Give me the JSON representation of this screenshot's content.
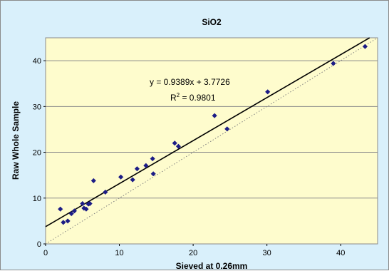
{
  "chart_data": {
    "type": "scatter",
    "title": "SiO2",
    "xlabel": "Sieved at 0.26mm",
    "ylabel": "Raw Whole Sample",
    "xlim": [
      0,
      45
    ],
    "ylim": [
      0,
      45
    ],
    "x_ticks": [
      0,
      10,
      20,
      30,
      40
    ],
    "y_ticks": [
      0,
      10,
      20,
      30,
      40
    ],
    "grid": "horizontal",
    "colors": {
      "chart_background": "#d9f0fb",
      "plot_background": "#fefccd",
      "points": "#1c1c86",
      "gridlines": "#8a8a8a",
      "trendline": "#000000",
      "reference_line": "#808080"
    },
    "series": [
      {
        "x": [
          2.0,
          2.4,
          3.0,
          3.5,
          3.9,
          5.0,
          5.2,
          5.5,
          5.8,
          6.0,
          6.5,
          8.1,
          10.2,
          11.8,
          12.4,
          13.6,
          14.5,
          14.6,
          17.5,
          18.0,
          22.9,
          24.6,
          30.1,
          39.0,
          43.3
        ],
        "y": [
          7.6,
          4.7,
          5.0,
          6.6,
          7.2,
          8.8,
          7.8,
          7.6,
          8.7,
          8.8,
          13.8,
          11.3,
          14.6,
          14.0,
          16.4,
          17.1,
          18.6,
          15.3,
          22.0,
          21.3,
          28.0,
          25.1,
          33.2,
          39.4,
          43.1
        ]
      }
    ],
    "trendline": {
      "slope": 0.9389,
      "intercept": 3.7726,
      "equation": "y = 0.9389x + 3.7726",
      "r2_prefix": "R",
      "r2_exponent": "2",
      "r2_value": " = 0.9801"
    },
    "reference_line": {
      "slope": 1,
      "intercept": 0,
      "style": "dotted"
    }
  }
}
